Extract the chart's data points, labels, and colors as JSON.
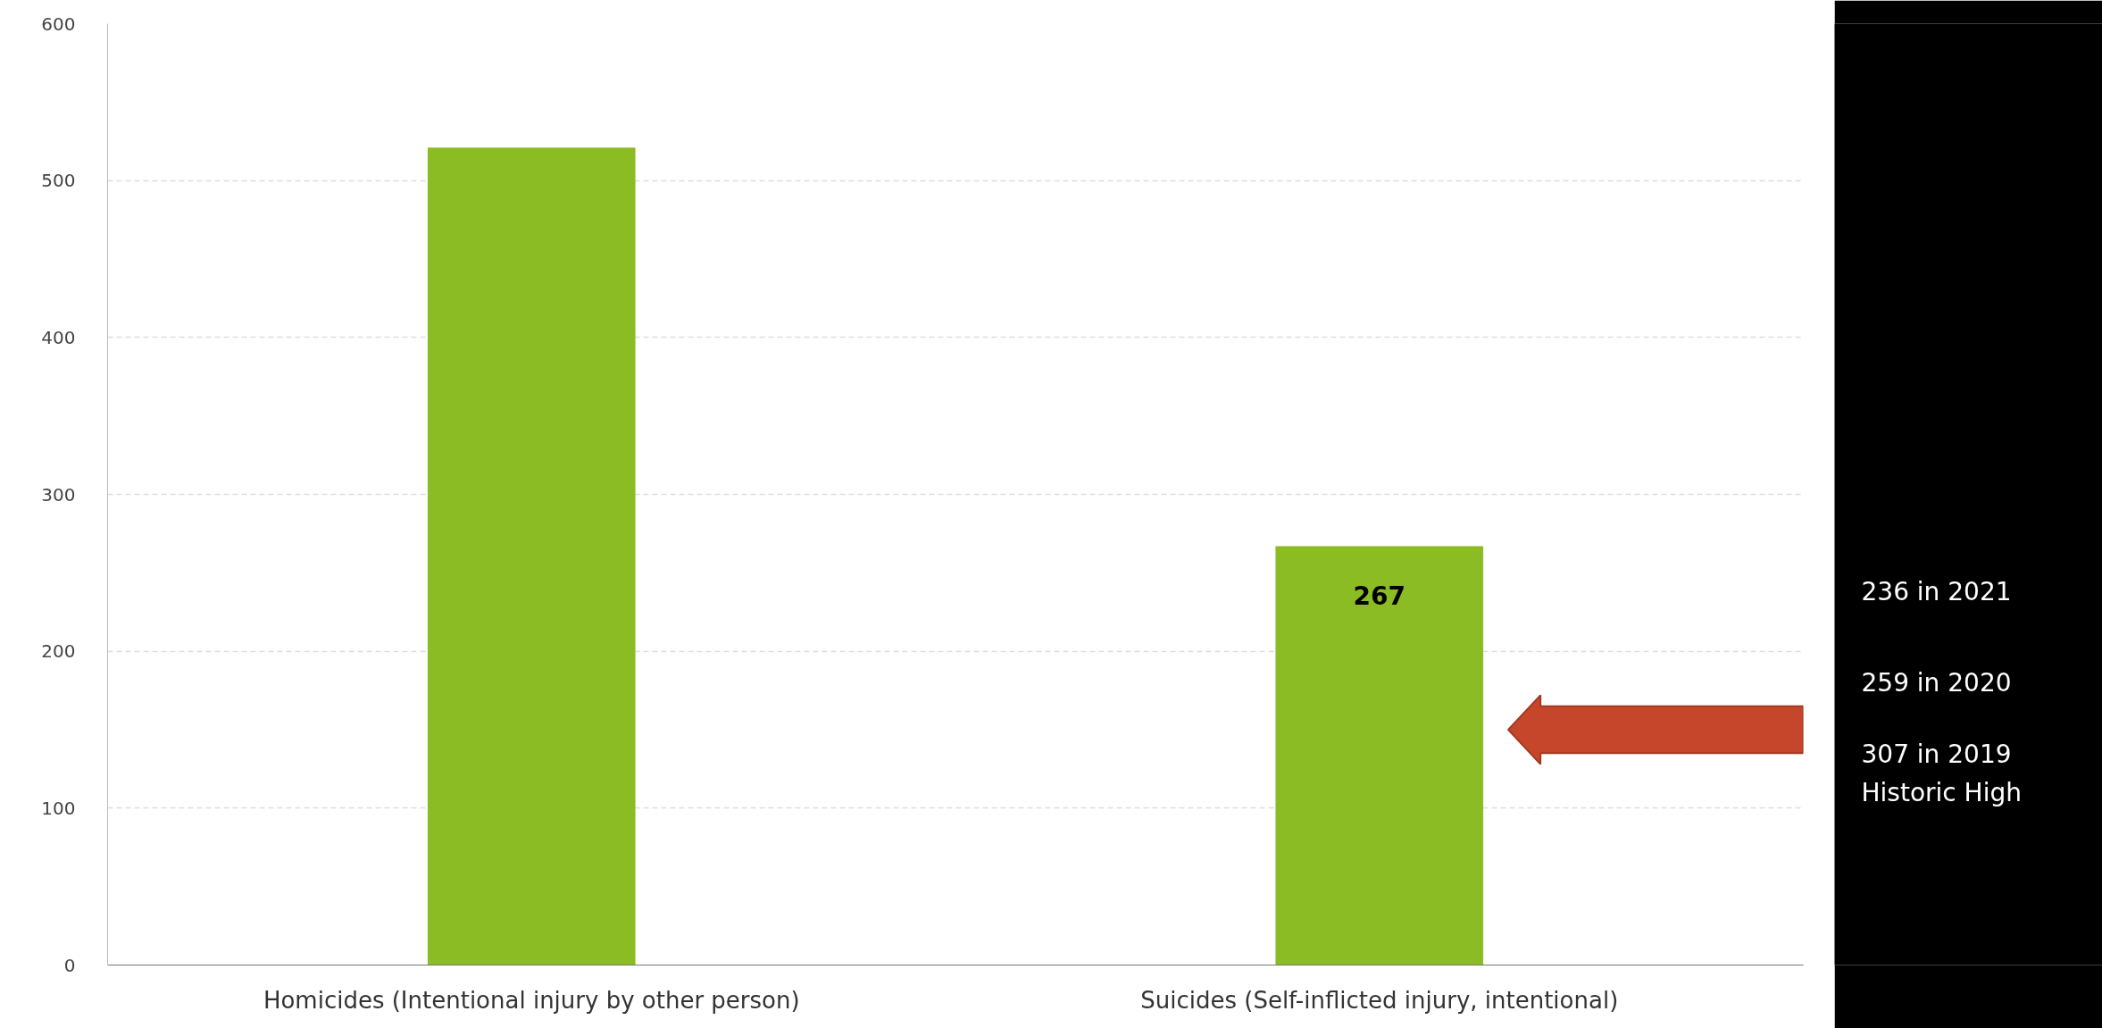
{
  "chart_data": {
    "type": "bar",
    "categories": [
      "Homicides (Intentional injury by other person)",
      "Suicides (Self-inflicted injury, intentional)"
    ],
    "values": [
      521,
      267
    ],
    "value_labels": [
      null,
      "267"
    ],
    "color": "#8cbc23",
    "ylim": [
      0,
      600
    ],
    "yticks": [
      0,
      100,
      200,
      300,
      400,
      500,
      600
    ],
    "grid": "y",
    "annotations": [
      "236 in 2021",
      "259 in 2020",
      "307 in 2019\nHistoric High"
    ]
  }
}
